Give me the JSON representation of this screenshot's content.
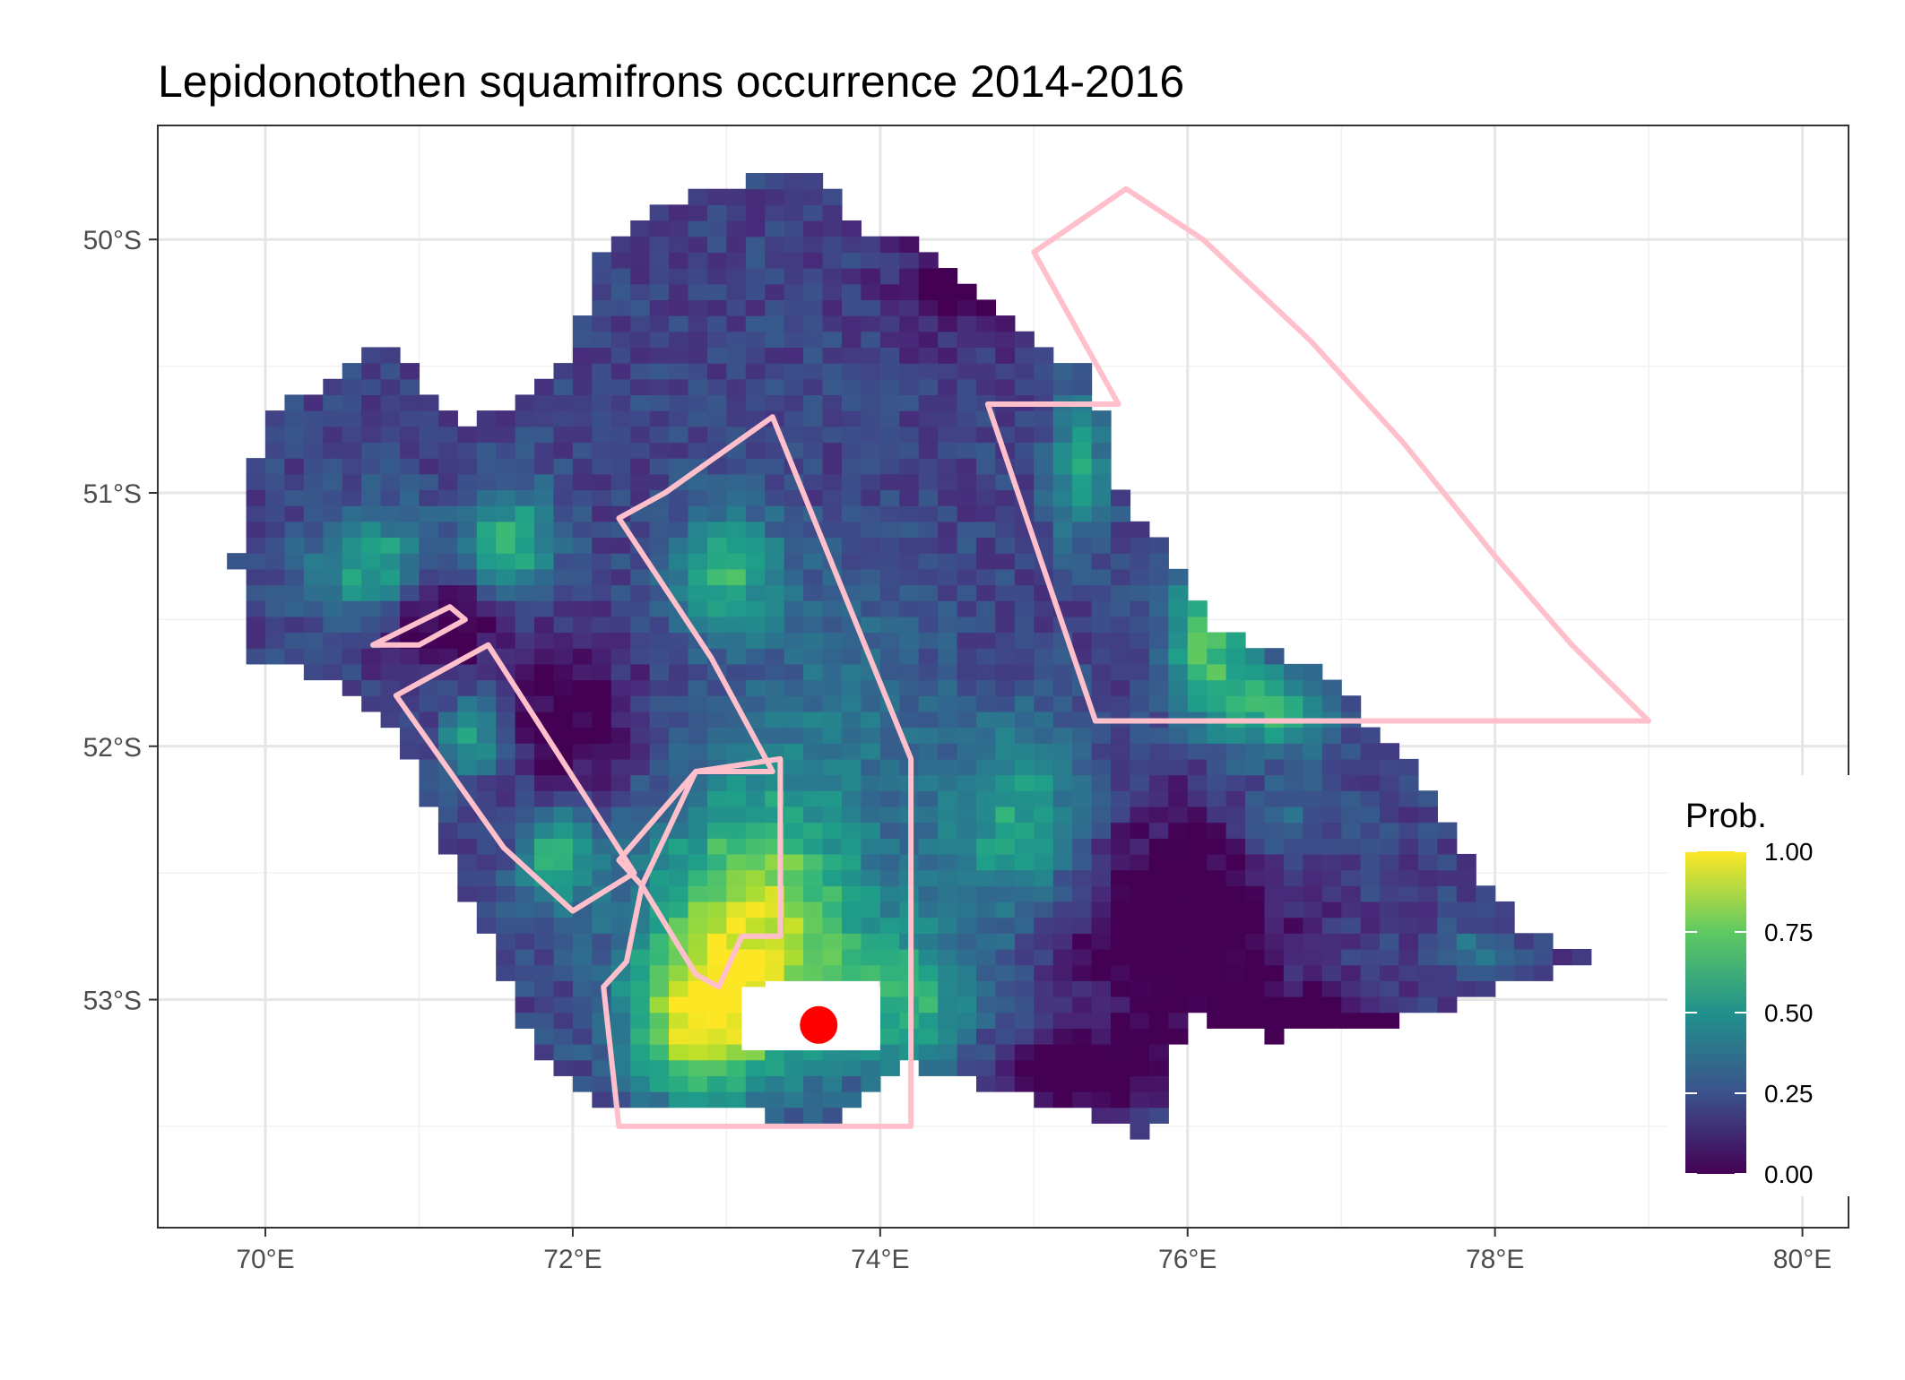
{
  "title": "Lepidonotothen squamifrons  occurrence 2014-2016",
  "legend": {
    "title": "Prob.",
    "ticks": [
      {
        "value": 1.0,
        "label": "1.00"
      },
      {
        "value": 0.75,
        "label": "0.75"
      },
      {
        "value": 0.5,
        "label": "0.50"
      },
      {
        "value": 0.25,
        "label": "0.25"
      },
      {
        "value": 0.0,
        "label": "0.00"
      }
    ],
    "palette": [
      "#440154",
      "#3b528b",
      "#21918c",
      "#5ec962",
      "#fde725"
    ]
  },
  "chart_data": {
    "type": "heatmap",
    "xlim": [
      69.3,
      80.3
    ],
    "ylim": [
      -53.9,
      -49.55
    ],
    "cell_size_deg": 0.125,
    "x_ticks": [
      {
        "value": 70,
        "label": "70°E"
      },
      {
        "value": 72,
        "label": "72°E"
      },
      {
        "value": 74,
        "label": "74°E"
      },
      {
        "value": 76,
        "label": "76°E"
      },
      {
        "value": 78,
        "label": "78°E"
      },
      {
        "value": 80,
        "label": "80°E"
      }
    ],
    "y_ticks": [
      {
        "value": -50,
        "label": "50°S"
      },
      {
        "value": -51,
        "label": "51°S"
      },
      {
        "value": -52,
        "label": "52°S"
      },
      {
        "value": -53,
        "label": "53°S"
      }
    ],
    "grid": true,
    "legend_position": "right",
    "zones": [
      {
        "name": "zone-northeast",
        "color": "#ffc0cb",
        "coords": [
          [
            75.0,
            -50.05
          ],
          [
            75.6,
            -49.8
          ],
          [
            76.1,
            -50.0
          ],
          [
            76.8,
            -50.4
          ],
          [
            77.4,
            -50.8
          ],
          [
            78.0,
            -51.25
          ],
          [
            78.5,
            -51.6
          ],
          [
            79.0,
            -51.9
          ],
          [
            75.4,
            -51.9
          ],
          [
            74.7,
            -50.65
          ],
          [
            75.55,
            -50.65
          ],
          [
            75.0,
            -50.05
          ]
        ]
      },
      {
        "name": "zone-central",
        "color": "#ffc0cb",
        "coords": [
          [
            72.3,
            -51.1
          ],
          [
            72.6,
            -51.0
          ],
          [
            73.3,
            -50.7
          ],
          [
            74.2,
            -52.05
          ],
          [
            74.2,
            -53.5
          ],
          [
            72.3,
            -53.5
          ],
          [
            72.2,
            -52.95
          ],
          [
            72.35,
            -52.85
          ],
          [
            72.45,
            -52.55
          ],
          [
            72.3,
            -52.45
          ],
          [
            72.8,
            -52.1
          ],
          [
            73.35,
            -52.05
          ],
          [
            73.35,
            -52.3
          ],
          [
            73.35,
            -52.75
          ],
          [
            73.1,
            -52.75
          ],
          [
            72.95,
            -52.95
          ],
          [
            72.8,
            -52.9
          ],
          [
            72.45,
            -52.55
          ],
          [
            72.8,
            -52.1
          ],
          [
            73.2,
            -52.1
          ],
          [
            73.3,
            -52.1
          ],
          [
            72.9,
            -51.65
          ],
          [
            72.3,
            -51.1
          ]
        ]
      },
      {
        "name": "zone-west-strip",
        "color": "#ffc0cb",
        "coords": [
          [
            70.85,
            -51.8
          ],
          [
            71.45,
            -51.6
          ],
          [
            72.4,
            -52.5
          ],
          [
            72.0,
            -52.65
          ],
          [
            71.55,
            -52.4
          ],
          [
            70.85,
            -51.8
          ]
        ]
      },
      {
        "name": "zone-west-small",
        "color": "#ffc0cb",
        "coords": [
          [
            70.7,
            -51.6
          ],
          [
            71.2,
            -51.45
          ],
          [
            71.3,
            -51.5
          ],
          [
            71.0,
            -51.6
          ],
          [
            70.7,
            -51.6
          ]
        ]
      }
    ],
    "point": {
      "lon": 73.6,
      "lat": -53.1,
      "color": "#ff0000"
    }
  }
}
